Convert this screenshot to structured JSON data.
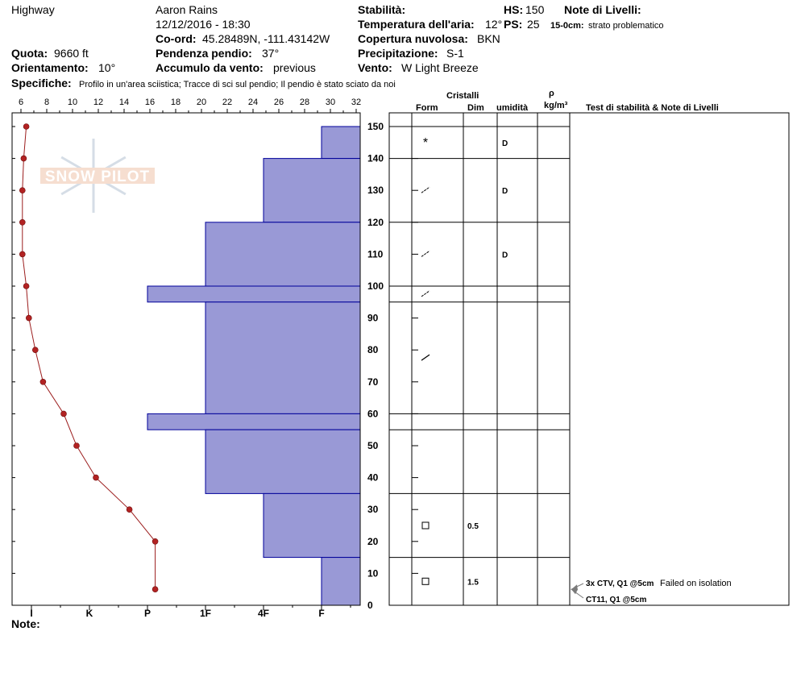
{
  "header": {
    "location": "Highway",
    "observer": "Aaron Rains",
    "datetime": "12/12/2016 - 18:30",
    "coord_label": "Co-ord:",
    "coord_value": "45.28489N, -111.43142W",
    "elevation_label": "Quota:",
    "elevation_value": "9660 ft",
    "slope_label": "Pendenza pendio:",
    "slope_value": "37°",
    "aspect_label": "Orientamento:",
    "aspect_value": "10°",
    "wind_loading_label": "Accumulo da vento:",
    "wind_loading_value": "previous",
    "stability_label": "Stabilità:",
    "air_temp_label": "Temperatura dell'aria:",
    "air_temp_value": "12°",
    "cloud_label": "Copertura nuvolosa:",
    "cloud_value": "BKN",
    "precip_label": "Precipitazione:",
    "precip_value": "S-1",
    "wind_label": "Vento:",
    "wind_value": "W Light Breeze",
    "hs_label": "HS:",
    "hs_value": "150",
    "ps_label": "PS:",
    "ps_value": "25",
    "layer_notes_label": "Note di Livelli:",
    "layer_note_depth": "15-0cm:",
    "layer_note_text": "strato problematico",
    "specifics_label": "Specifiche:",
    "specifics_text": "Profilo in un'area sciistica; Tracce di sci sul pendio; Il pendio è stato sciato da noi"
  },
  "logo": {
    "text": "SNOW PILOT"
  },
  "columns": {
    "crystals": "Cristalli",
    "form": "Form",
    "size": "Dim",
    "moisture": "umidità",
    "rho": "ρ",
    "density_unit": "kg/m³",
    "stability_notes": "Test di stabilità & Note di Livelli"
  },
  "footer": {
    "note_label": "Note:"
  },
  "colors": {
    "hardness_fill": "#9999d6",
    "hardness_edge": "#00009a",
    "temp_line": "#9b1c1c",
    "temp_point": "#b22222",
    "stability_arrow": "#7a7a7a"
  },
  "chart_data": {
    "type": "snow-profile",
    "y_axis": {
      "ylim": [
        0,
        150
      ],
      "ticks": [
        0,
        10,
        20,
        30,
        40,
        50,
        60,
        70,
        80,
        90,
        100,
        110,
        120,
        130,
        140,
        150
      ],
      "unit": "cm"
    },
    "temp_axis": {
      "ticks": [
        "6",
        "8",
        "10",
        "12",
        "14",
        "16",
        "18",
        "20",
        "22",
        "24",
        "26",
        "28",
        "30",
        "32"
      ]
    },
    "hardness_axis": {
      "ticks": [
        "I",
        "K",
        "P",
        "1F",
        "4F",
        "F"
      ]
    },
    "temperature_profile": [
      {
        "depth": 150,
        "temp": 7.6
      },
      {
        "depth": 140,
        "temp": 7.4
      },
      {
        "depth": 130,
        "temp": 7.3
      },
      {
        "depth": 120,
        "temp": 7.3
      },
      {
        "depth": 110,
        "temp": 7.3
      },
      {
        "depth": 100,
        "temp": 7.6
      },
      {
        "depth": 90,
        "temp": 7.8
      },
      {
        "depth": 80,
        "temp": 8.3
      },
      {
        "depth": 70,
        "temp": 8.9
      },
      {
        "depth": 60,
        "temp": 10.5
      },
      {
        "depth": 50,
        "temp": 11.5
      },
      {
        "depth": 40,
        "temp": 13.0
      },
      {
        "depth": 30,
        "temp": 15.6
      },
      {
        "depth": 20,
        "temp": 17.6
      },
      {
        "depth": 5,
        "temp": 17.6
      }
    ],
    "hardness_layers": [
      {
        "top": 150,
        "bottom": 140,
        "hardness": "F"
      },
      {
        "top": 140,
        "bottom": 120,
        "hardness": "4F"
      },
      {
        "top": 120,
        "bottom": 100,
        "hardness": "1F"
      },
      {
        "top": 100,
        "bottom": 95,
        "hardness": "P"
      },
      {
        "top": 95,
        "bottom": 60,
        "hardness": "1F"
      },
      {
        "top": 60,
        "bottom": 55,
        "hardness": "P"
      },
      {
        "top": 55,
        "bottom": 35,
        "hardness": "1F"
      },
      {
        "top": 35,
        "bottom": 15,
        "hardness": "4F"
      },
      {
        "top": 15,
        "bottom": 0,
        "hardness": "F"
      }
    ],
    "layers": [
      {
        "top": 150,
        "bottom": 140,
        "form": "star",
        "size": "",
        "moisture": "D"
      },
      {
        "top": 140,
        "bottom": 120,
        "form": "slash",
        "size": "",
        "moisture": "D"
      },
      {
        "top": 120,
        "bottom": 100,
        "form": "slash",
        "size": "",
        "moisture": "D"
      },
      {
        "top": 100,
        "bottom": 95,
        "form": "slash",
        "size": "",
        "moisture": ""
      },
      {
        "top": 95,
        "bottom": 60,
        "form": "line",
        "size": "",
        "moisture": ""
      },
      {
        "top": 60,
        "bottom": 55,
        "form": "",
        "size": "",
        "moisture": ""
      },
      {
        "top": 55,
        "bottom": 35,
        "form": "",
        "size": "",
        "moisture": ""
      },
      {
        "top": 35,
        "bottom": 15,
        "form": "square",
        "size": "0.5",
        "moisture": ""
      },
      {
        "top": 15,
        "bottom": 0,
        "form": "square",
        "size": "1.5",
        "moisture": ""
      }
    ],
    "stability_tests": [
      {
        "depth": 5,
        "code": "3x CTV, Q1 @5cm",
        "note": "Failed on isolation"
      },
      {
        "depth": 5,
        "code": "CT11, Q1 @5cm",
        "note": ""
      }
    ]
  }
}
